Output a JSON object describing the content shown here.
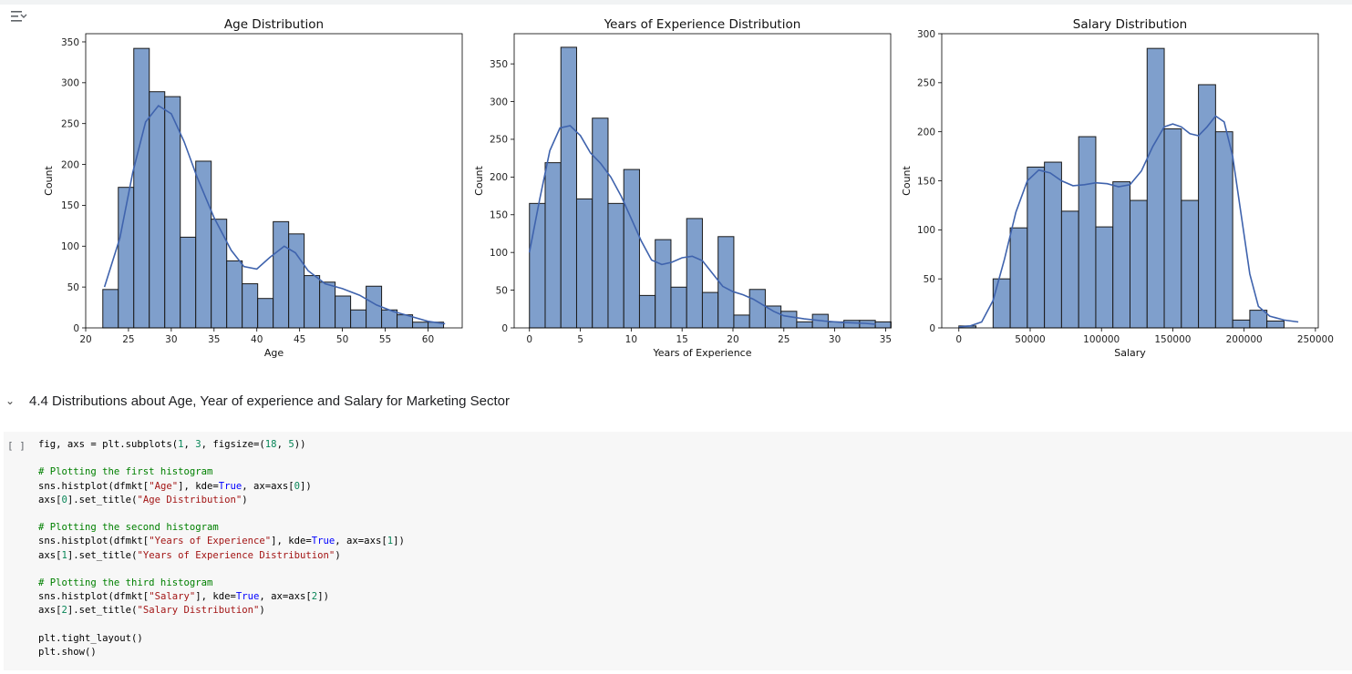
{
  "output": {
    "icon": "output-toggle-icon"
  },
  "section": {
    "chevron": "⌄",
    "title": "4.4 Distributions about Age, Year of experience and Salary for Marketing Sector"
  },
  "cell": {
    "run_label": "[ ]",
    "code_lines": [
      [
        {
          "t": "fig, axs = plt.subplots(",
          "c": ""
        },
        {
          "t": "1",
          "c": "num"
        },
        {
          "t": ", ",
          "c": ""
        },
        {
          "t": "3",
          "c": "num"
        },
        {
          "t": ", figsize=(",
          "c": ""
        },
        {
          "t": "18",
          "c": "num"
        },
        {
          "t": ", ",
          "c": ""
        },
        {
          "t": "5",
          "c": "num"
        },
        {
          "t": "))",
          "c": ""
        }
      ],
      [],
      [
        {
          "t": "# Plotting the first histogram",
          "c": "cm"
        }
      ],
      [
        {
          "t": "sns.histplot(dfmkt[",
          "c": ""
        },
        {
          "t": "\"Age\"",
          "c": "str"
        },
        {
          "t": "], kde=",
          "c": ""
        },
        {
          "t": "True",
          "c": "kw"
        },
        {
          "t": ", ax=axs[",
          "c": ""
        },
        {
          "t": "0",
          "c": "num"
        },
        {
          "t": "])",
          "c": ""
        }
      ],
      [
        {
          "t": "axs[",
          "c": ""
        },
        {
          "t": "0",
          "c": "num"
        },
        {
          "t": "].set_title(",
          "c": ""
        },
        {
          "t": "\"Age Distribution\"",
          "c": "str"
        },
        {
          "t": ")",
          "c": ""
        }
      ],
      [],
      [
        {
          "t": "# Plotting the second histogram",
          "c": "cm"
        }
      ],
      [
        {
          "t": "sns.histplot(dfmkt[",
          "c": ""
        },
        {
          "t": "\"Years of Experience\"",
          "c": "str"
        },
        {
          "t": "], kde=",
          "c": ""
        },
        {
          "t": "True",
          "c": "kw"
        },
        {
          "t": ", ax=axs[",
          "c": ""
        },
        {
          "t": "1",
          "c": "num"
        },
        {
          "t": "])",
          "c": ""
        }
      ],
      [
        {
          "t": "axs[",
          "c": ""
        },
        {
          "t": "1",
          "c": "num"
        },
        {
          "t": "].set_title(",
          "c": ""
        },
        {
          "t": "\"Years of Experience Distribution\"",
          "c": "str"
        },
        {
          "t": ")",
          "c": ""
        }
      ],
      [],
      [
        {
          "t": "# Plotting the third histogram",
          "c": "cm"
        }
      ],
      [
        {
          "t": "sns.histplot(dfmkt[",
          "c": ""
        },
        {
          "t": "\"Salary\"",
          "c": "str"
        },
        {
          "t": "], kde=",
          "c": ""
        },
        {
          "t": "True",
          "c": "kw"
        },
        {
          "t": ", ax=axs[",
          "c": ""
        },
        {
          "t": "2",
          "c": "num"
        },
        {
          "t": "])",
          "c": ""
        }
      ],
      [
        {
          "t": "axs[",
          "c": ""
        },
        {
          "t": "2",
          "c": "num"
        },
        {
          "t": "].set_title(",
          "c": ""
        },
        {
          "t": "\"Salary Distribution\"",
          "c": "str"
        },
        {
          "t": ")",
          "c": ""
        }
      ],
      [],
      [
        {
          "t": "plt.tight_layout()",
          "c": ""
        }
      ],
      [
        {
          "t": "plt.show()",
          "c": ""
        }
      ]
    ]
  },
  "colors": {
    "bar_fill": "#7f9fcc",
    "bar_edge": "#1a1a1a",
    "kde_line": "#3f63ad"
  },
  "chart_data": [
    {
      "type": "bar",
      "title": "Age Distribution",
      "xlabel": "Age",
      "ylabel": "Count",
      "xlim": [
        20,
        64
      ],
      "ylim": [
        0,
        360
      ],
      "xticks": [
        20,
        25,
        30,
        35,
        40,
        45,
        50,
        55,
        60
      ],
      "yticks": [
        0,
        50,
        100,
        150,
        200,
        250,
        300,
        350
      ],
      "bin_start": 22,
      "bin_width": 1.81,
      "values": [
        47,
        172,
        342,
        289,
        283,
        111,
        204,
        133,
        82,
        54,
        36,
        130,
        115,
        64,
        56,
        39,
        22,
        51,
        22,
        16,
        7,
        7
      ],
      "kde": [
        [
          22.2,
          50
        ],
        [
          24,
          110
        ],
        [
          25.5,
          190
        ],
        [
          27,
          252
        ],
        [
          28.5,
          272
        ],
        [
          30,
          262
        ],
        [
          31.5,
          228
        ],
        [
          33,
          185
        ],
        [
          35,
          135
        ],
        [
          37,
          95
        ],
        [
          38.5,
          75
        ],
        [
          40,
          72
        ],
        [
          41.5,
          86
        ],
        [
          43.2,
          100
        ],
        [
          44.5,
          92
        ],
        [
          46,
          70
        ],
        [
          48,
          54
        ],
        [
          50,
          48
        ],
        [
          52,
          40
        ],
        [
          54,
          28
        ],
        [
          56,
          20
        ],
        [
          58,
          14
        ],
        [
          60,
          8
        ],
        [
          62,
          5
        ]
      ],
      "grid": false
    },
    {
      "type": "bar",
      "title": "Years of Experience Distribution",
      "xlabel": "Years of Experience",
      "ylabel": "Count",
      "xlim": [
        -1.5,
        35.5
      ],
      "ylim": [
        0,
        390
      ],
      "xticks": [
        0,
        5,
        10,
        15,
        20,
        25,
        30,
        35
      ],
      "yticks": [
        0,
        50,
        100,
        150,
        200,
        250,
        300,
        350
      ],
      "bin_start": 0,
      "bin_width": 1.545,
      "values": [
        165,
        219,
        372,
        171,
        278,
        165,
        210,
        43,
        117,
        54,
        145,
        47,
        121,
        17,
        51,
        29,
        22,
        8,
        18,
        8,
        10,
        10,
        8
      ],
      "kde": [
        [
          0,
          100
        ],
        [
          1,
          170
        ],
        [
          2,
          235
        ],
        [
          3,
          265
        ],
        [
          4,
          268
        ],
        [
          5,
          255
        ],
        [
          6,
          232
        ],
        [
          7,
          218
        ],
        [
          8,
          200
        ],
        [
          9,
          175
        ],
        [
          10,
          145
        ],
        [
          11,
          115
        ],
        [
          12,
          90
        ],
        [
          13,
          84
        ],
        [
          14,
          87
        ],
        [
          15,
          93
        ],
        [
          16,
          95
        ],
        [
          17,
          89
        ],
        [
          18,
          72
        ],
        [
          19,
          55
        ],
        [
          20,
          48
        ],
        [
          21,
          44
        ],
        [
          22,
          38
        ],
        [
          23,
          30
        ],
        [
          24,
          22
        ],
        [
          25,
          16
        ],
        [
          27,
          12
        ],
        [
          29,
          9
        ],
        [
          31,
          7
        ],
        [
          33,
          6
        ],
        [
          34,
          5
        ]
      ],
      "grid": false
    },
    {
      "type": "bar",
      "title": "Salary Distribution",
      "xlabel": "Salary",
      "ylabel": "Count",
      "xlim": [
        -12000,
        252000
      ],
      "ylim": [
        0,
        300
      ],
      "xticks": [
        0,
        50000,
        100000,
        150000,
        200000,
        250000
      ],
      "yticks": [
        0,
        50,
        100,
        150,
        200,
        250,
        300
      ],
      "bin_start": 0,
      "bin_width": 12000,
      "values": [
        2,
        0,
        50,
        102,
        164,
        169,
        119,
        195,
        103,
        149,
        130,
        285,
        203,
        130,
        248,
        200,
        8,
        18,
        7
      ],
      "kde": [
        [
          0,
          1
        ],
        [
          8000,
          2
        ],
        [
          16000,
          6
        ],
        [
          24000,
          28
        ],
        [
          32000,
          70
        ],
        [
          40000,
          118
        ],
        [
          48000,
          150
        ],
        [
          56000,
          161
        ],
        [
          64000,
          158
        ],
        [
          72000,
          150
        ],
        [
          80000,
          145
        ],
        [
          88000,
          146
        ],
        [
          96000,
          148
        ],
        [
          104000,
          147
        ],
        [
          112000,
          144
        ],
        [
          120000,
          146
        ],
        [
          128000,
          160
        ],
        [
          136000,
          185
        ],
        [
          144000,
          205
        ],
        [
          150000,
          208
        ],
        [
          156000,
          205
        ],
        [
          162000,
          198
        ],
        [
          168000,
          196
        ],
        [
          174000,
          205
        ],
        [
          180000,
          216
        ],
        [
          186000,
          210
        ],
        [
          192000,
          175
        ],
        [
          198000,
          115
        ],
        [
          204000,
          55
        ],
        [
          210000,
          22
        ],
        [
          218000,
          12
        ],
        [
          228000,
          8
        ],
        [
          238000,
          6
        ]
      ],
      "grid": false
    }
  ]
}
